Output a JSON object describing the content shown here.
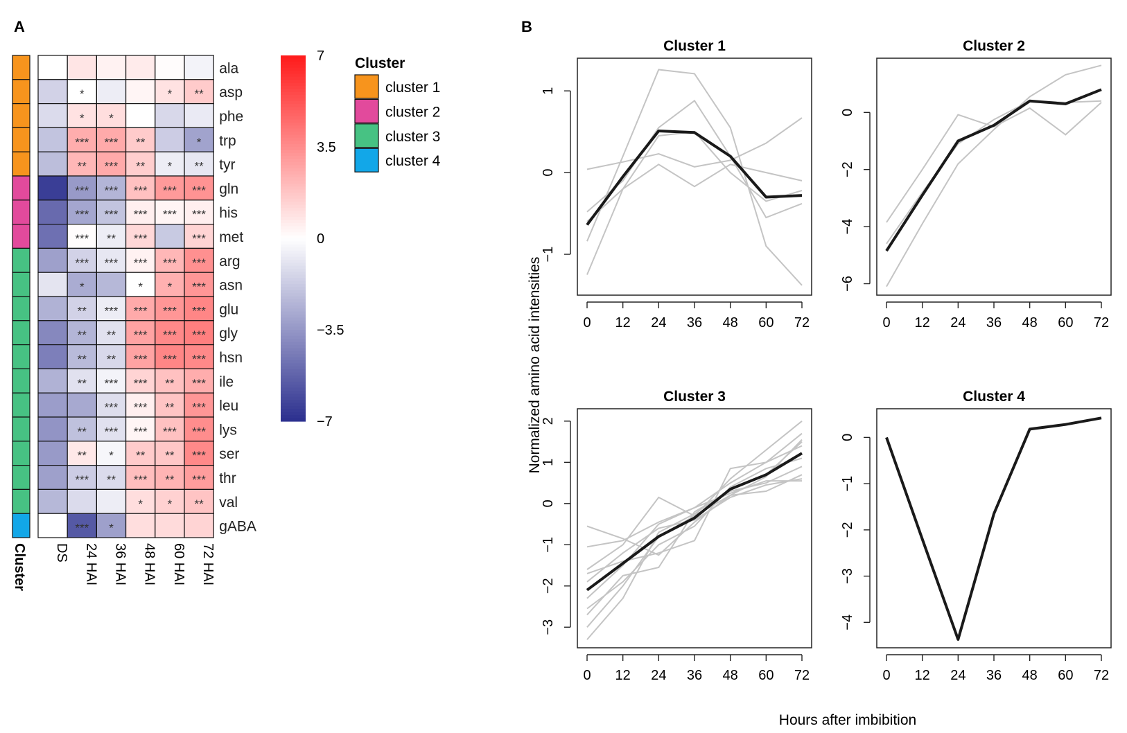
{
  "panel_labels": {
    "a": "A",
    "b": "B"
  },
  "chart_data": [
    {
      "type": "heatmap",
      "panel": "A",
      "columns": [
        "DS",
        "24 HAI",
        "36 HAI",
        "48 HAI",
        "60 HAI",
        "72 HAI"
      ],
      "rows": [
        "ala",
        "asp",
        "phe",
        "trp",
        "tyr",
        "gln",
        "his",
        "met",
        "arg",
        "asn",
        "glu",
        "gly",
        "hsn",
        "ile",
        "leu",
        "lys",
        "ser",
        "thr",
        "val",
        "gABA"
      ],
      "row_cluster": [
        1,
        1,
        1,
        1,
        1,
        2,
        2,
        2,
        3,
        3,
        3,
        3,
        3,
        3,
        3,
        3,
        3,
        3,
        3,
        4
      ],
      "cluster_axis_label": "Cluster",
      "values": [
        [
          0.0,
          0.8,
          0.4,
          0.6,
          0.1,
          -0.4
        ],
        [
          -1.5,
          0.0,
          -0.6,
          0.3,
          0.9,
          1.6
        ],
        [
          -1.2,
          0.9,
          1.0,
          0.0,
          -1.3,
          -0.7
        ],
        [
          -2.0,
          2.5,
          2.6,
          1.6,
          -1.7,
          -3.1
        ],
        [
          -2.2,
          2.2,
          2.6,
          1.5,
          -0.6,
          -0.8
        ],
        [
          -6.5,
          -3.4,
          -2.5,
          1.9,
          3.1,
          3.3
        ],
        [
          -5.0,
          -3.0,
          -2.0,
          0.5,
          0.3,
          0.5
        ],
        [
          -4.8,
          0.1,
          -0.6,
          1.2,
          -1.8,
          1.3
        ],
        [
          -3.2,
          -1.5,
          -0.8,
          0.4,
          2.2,
          3.4
        ],
        [
          -0.9,
          -2.8,
          -2.4,
          0.0,
          2.4,
          3.2
        ],
        [
          -2.6,
          -1.5,
          -0.6,
          2.6,
          3.2,
          3.7
        ],
        [
          -4.0,
          -2.5,
          -1.0,
          2.8,
          3.6,
          3.9
        ],
        [
          -4.3,
          -2.3,
          -1.3,
          2.8,
          3.7,
          3.6
        ],
        [
          -2.6,
          -1.0,
          -0.4,
          1.3,
          1.9,
          2.5
        ],
        [
          -3.3,
          -2.9,
          -1.1,
          0.5,
          1.8,
          3.2
        ],
        [
          -3.6,
          -2.1,
          -1.0,
          0.3,
          1.9,
          3.5
        ],
        [
          -3.4,
          0.7,
          -0.3,
          1.6,
          1.7,
          3.6
        ],
        [
          -3.2,
          -1.7,
          -1.2,
          2.0,
          2.3,
          3.0
        ],
        [
          -2.4,
          -1.2,
          -0.6,
          1.0,
          1.4,
          1.8
        ],
        [
          0.0,
          -5.6,
          -3.2,
          1.0,
          1.1,
          1.3
        ]
      ],
      "significance": [
        [
          "",
          "",
          "",
          "",
          "",
          ""
        ],
        [
          "",
          "*",
          "",
          "",
          "*",
          "**"
        ],
        [
          "",
          "*",
          "*",
          "",
          "",
          ""
        ],
        [
          "",
          "***",
          "***",
          "**",
          "",
          "*"
        ],
        [
          "",
          "**",
          "***",
          "**",
          "*",
          "**"
        ],
        [
          "",
          "***",
          "***",
          "***",
          "***",
          "***"
        ],
        [
          "",
          "***",
          "***",
          "***",
          "***",
          "***"
        ],
        [
          "",
          "***",
          "**",
          "***",
          "",
          "***"
        ],
        [
          "",
          "***",
          "***",
          "***",
          "***",
          "***"
        ],
        [
          "",
          "*",
          "",
          "*",
          "*",
          "***"
        ],
        [
          "",
          "**",
          "***",
          "***",
          "***",
          "***"
        ],
        [
          "",
          "**",
          "**",
          "***",
          "***",
          "***"
        ],
        [
          "",
          "**",
          "**",
          "***",
          "***",
          "***"
        ],
        [
          "",
          "**",
          "***",
          "***",
          "**",
          "***"
        ],
        [
          "",
          "",
          "***",
          "***",
          "**",
          "***"
        ],
        [
          "",
          "**",
          "***",
          "***",
          "***",
          "***"
        ],
        [
          "",
          "**",
          "*",
          "**",
          "**",
          "***"
        ],
        [
          "",
          "***",
          "**",
          "***",
          "**",
          "***"
        ],
        [
          "",
          "",
          "",
          "*",
          "*",
          "**"
        ],
        [
          "",
          "***",
          "*",
          "",
          "",
          ""
        ]
      ],
      "colorbar": {
        "range": [
          -7,
          7
        ],
        "ticks": [
          7,
          3.5,
          0,
          -3.5,
          -7
        ],
        "tick_labels": [
          "7",
          "3.5",
          "0",
          "−3.5",
          "−7"
        ],
        "colors": {
          "low": "#2b2f8e",
          "mid": "#ffffff",
          "high": "#ff1a1a"
        }
      },
      "legend": {
        "title": "Cluster",
        "items": [
          {
            "label": "cluster 1",
            "color": "#f7941d"
          },
          {
            "label": "cluster 2",
            "color": "#e24a9c"
          },
          {
            "label": "cluster 3",
            "color": "#47c283"
          },
          {
            "label": "cluster 4",
            "color": "#12a7e8"
          }
        ]
      }
    },
    {
      "type": "line",
      "panel": "B",
      "title": "Cluster 1",
      "x": [
        0,
        12,
        24,
        36,
        48,
        60,
        72
      ],
      "xticks": [
        "0",
        "12",
        "24",
        "36",
        "48",
        "60",
        "72"
      ],
      "ylim": [
        -1.5,
        1.4
      ],
      "yticks": [
        1,
        0,
        -1
      ],
      "ytick_labels": [
        "1",
        "0",
        "−1"
      ],
      "mean": [
        -0.64,
        -0.05,
        0.51,
        0.49,
        0.2,
        -0.3,
        -0.28
      ],
      "members": [
        [
          0.04,
          0.13,
          0.23,
          0.07,
          0.15,
          0.36,
          0.67
        ],
        [
          -0.48,
          -0.1,
          0.55,
          0.88,
          0.2,
          -0.55,
          -0.38
        ],
        [
          -0.6,
          -0.2,
          0.1,
          -0.17,
          0.1,
          0.0,
          -0.1
        ],
        [
          -0.84,
          0.2,
          1.26,
          1.21,
          0.55,
          -0.9,
          -1.38
        ],
        [
          -1.25,
          -0.2,
          0.45,
          0.5,
          0.0,
          -0.35,
          -0.22
        ]
      ]
    },
    {
      "type": "line",
      "panel": "B",
      "title": "Cluster 2",
      "x": [
        0,
        12,
        24,
        36,
        48,
        60,
        72
      ],
      "xticks": [
        "0",
        "12",
        "24",
        "36",
        "48",
        "60",
        "72"
      ],
      "ylim": [
        -6.4,
        1.9
      ],
      "yticks": [
        0,
        -2,
        -4,
        -6
      ],
      "ytick_labels": [
        "0",
        "−2",
        "−4",
        "−6"
      ],
      "mean": [
        -4.85,
        -2.9,
        -1.0,
        -0.45,
        0.4,
        0.3,
        0.8
      ],
      "members": [
        [
          -3.85,
          -2.0,
          -0.08,
          -0.5,
          0.15,
          -0.78,
          0.35
        ],
        [
          -6.1,
          -3.9,
          -1.8,
          -0.6,
          0.55,
          1.32,
          1.65
        ],
        [
          -4.6,
          -2.8,
          -1.1,
          -0.25,
          0.4,
          0.35,
          0.4
        ]
      ]
    },
    {
      "type": "line",
      "panel": "B",
      "title": "Cluster 3",
      "x": [
        0,
        12,
        24,
        36,
        48,
        60,
        72
      ],
      "xticks": [
        "0",
        "12",
        "24",
        "36",
        "48",
        "60",
        "72"
      ],
      "ylim": [
        -3.5,
        2.3
      ],
      "yticks": [
        2,
        1,
        0,
        -1,
        -2,
        -3
      ],
      "ytick_labels": [
        "2",
        "1",
        "0",
        "−1",
        "−2",
        "−3"
      ],
      "mean": [
        -2.1,
        -1.45,
        -0.8,
        -0.35,
        0.35,
        0.7,
        1.22
      ],
      "members": [
        [
          -0.55,
          -0.85,
          -1.25,
          -0.45,
          0.2,
          0.65,
          1.55
        ],
        [
          -1.05,
          -0.9,
          -0.45,
          -0.1,
          0.5,
          1.0,
          1.4
        ],
        [
          -1.6,
          -1.0,
          0.15,
          -0.3,
          0.6,
          1.3,
          2.0
        ],
        [
          -1.7,
          -1.4,
          -1.2,
          -0.9,
          0.85,
          1.0,
          1.7
        ],
        [
          -1.9,
          -1.2,
          -0.6,
          -0.4,
          0.15,
          0.45,
          0.6
        ],
        [
          -2.3,
          -1.5,
          -0.5,
          -0.1,
          0.25,
          0.55,
          0.55
        ],
        [
          -2.55,
          -1.9,
          -1.0,
          -0.55,
          0.4,
          0.85,
          1.1
        ],
        [
          -2.7,
          -1.75,
          -1.55,
          -0.2,
          0.3,
          0.5,
          0.9
        ],
        [
          -3.0,
          -2.0,
          -0.8,
          -0.3,
          0.2,
          0.3,
          0.7
        ],
        [
          -3.3,
          -2.3,
          -0.7,
          -0.25,
          0.35,
          0.7,
          1.5
        ]
      ]
    },
    {
      "type": "line",
      "panel": "B",
      "title": "Cluster 4",
      "x": [
        0,
        12,
        24,
        36,
        48,
        60,
        72
      ],
      "xticks": [
        "0",
        "12",
        "24",
        "36",
        "48",
        "60",
        "72"
      ],
      "ylim": [
        -4.55,
        0.62
      ],
      "yticks": [
        0,
        -1,
        -2,
        -3,
        -4
      ],
      "ytick_labels": [
        "0",
        "−1",
        "−2",
        "−3",
        "−4"
      ],
      "mean": [
        0.0,
        -2.2,
        -4.37,
        -1.65,
        0.18,
        0.28,
        0.42
      ],
      "members": []
    }
  ],
  "shared_labels": {
    "ylabel": "Normalized amino acid intensities",
    "xlabel": "Hours after imbibition"
  }
}
